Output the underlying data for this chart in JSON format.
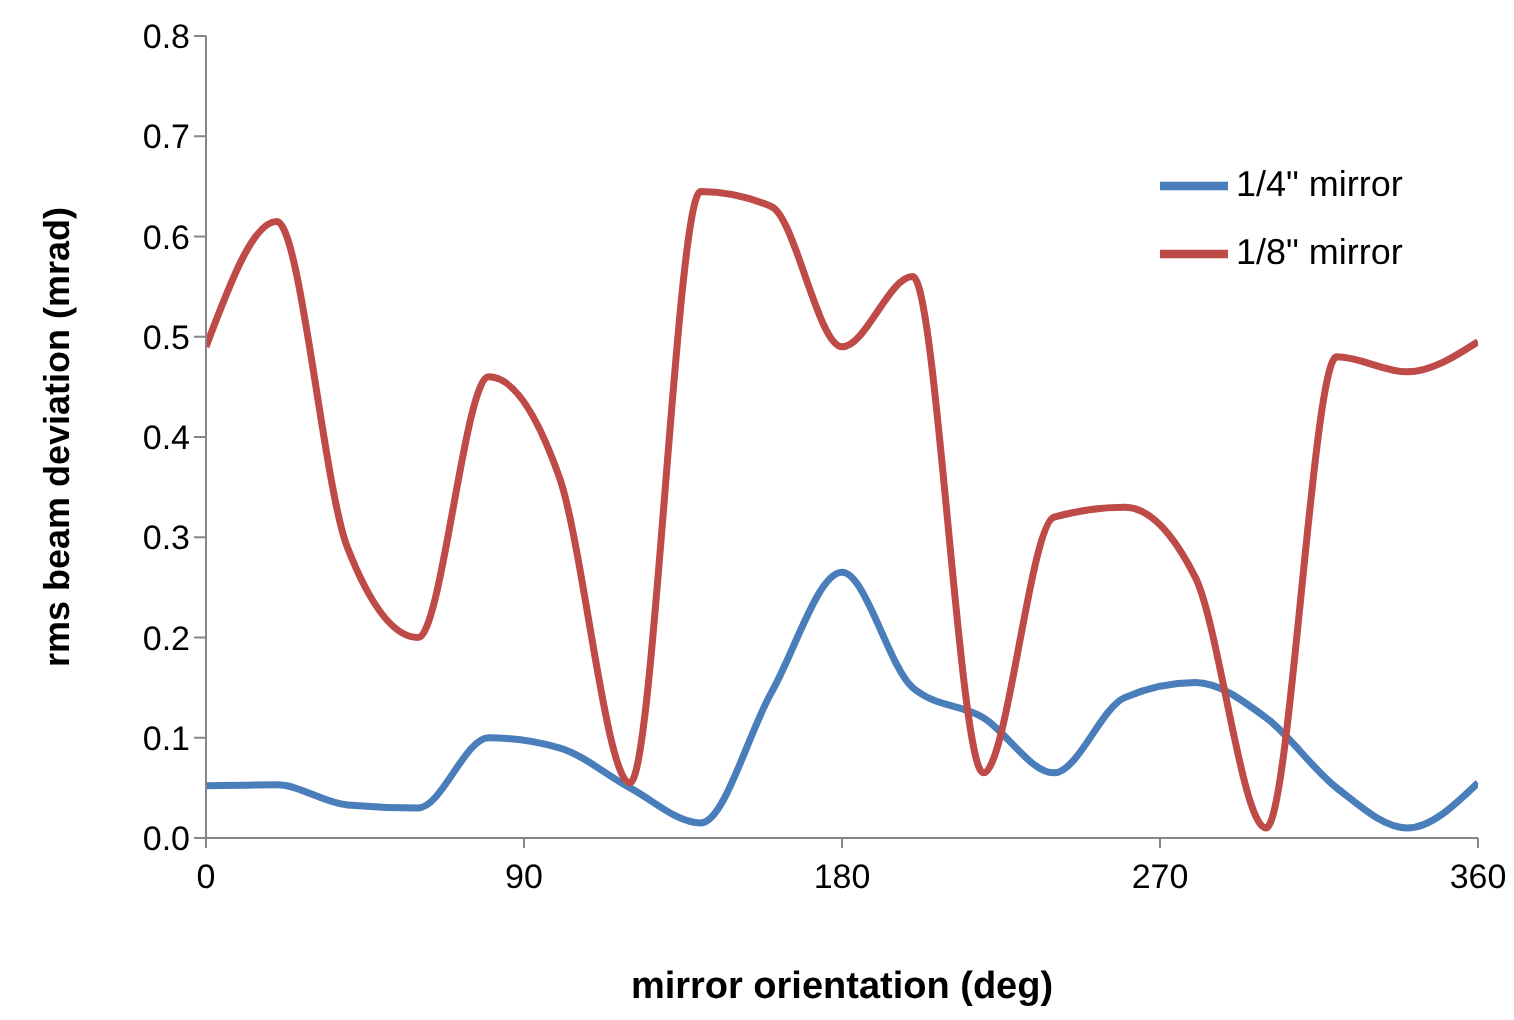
{
  "chart_data": {
    "type": "line",
    "xlabel": "mirror orientation (deg)",
    "ylabel": "rms beam deviation (mrad)",
    "x": [
      0,
      20,
      40,
      60,
      80,
      100,
      120,
      140,
      160,
      180,
      200,
      220,
      240,
      260,
      280,
      300,
      320,
      340,
      360
    ],
    "series": [
      {
        "name": "1/4\" mirror",
        "color": "#4a7ebb",
        "values": [
          0.052,
          0.053,
          0.033,
          0.03,
          0.1,
          0.09,
          0.05,
          0.015,
          0.145,
          0.265,
          0.15,
          0.12,
          0.065,
          0.14,
          0.155,
          0.12,
          0.05,
          0.01,
          0.055
        ]
      },
      {
        "name": "1/8\" mirror",
        "color": "#be4b48",
        "values": [
          0.49,
          0.615,
          0.29,
          0.2,
          0.46,
          0.36,
          0.055,
          0.645,
          0.63,
          0.49,
          0.56,
          0.065,
          0.32,
          0.33,
          0.26,
          0.01,
          0.48,
          0.465,
          0.495
        ]
      }
    ],
    "xlim": [
      0,
      360
    ],
    "xticks": [
      0,
      90,
      180,
      270,
      360
    ],
    "ylim": [
      0,
      0.8
    ],
    "yticks": [
      {
        "value": 0,
        "label": "0.0"
      },
      {
        "value": 0.1,
        "label": "0.1"
      },
      {
        "value": 0.2,
        "label": "0.2"
      },
      {
        "value": 0.3,
        "label": "0.3"
      },
      {
        "value": 0.4,
        "label": "0.4"
      },
      {
        "value": 0.5,
        "label": "0.5"
      },
      {
        "value": 0.6,
        "label": "0.6"
      },
      {
        "value": 0.7,
        "label": "0.7"
      },
      {
        "value": 0.8,
        "label": "0.8"
      }
    ],
    "grid": false,
    "legend": "top right",
    "marker": "none",
    "line_style": "solid"
  }
}
